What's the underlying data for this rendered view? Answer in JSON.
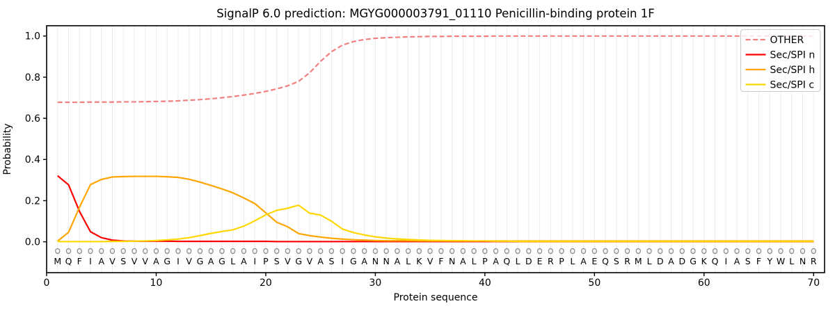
{
  "figure": {
    "title": "SignalP 6.0 prediction: MGYG000003791_01110 Penicillin-binding protein 1F",
    "xlabel": "Protein sequence",
    "ylabel": "Probability",
    "background_color": "#ffffff",
    "grid_color": "#ebebeb",
    "spine_color": "#000000",
    "marker_symbol_name": "residue-circle-marker"
  },
  "chart_data": {
    "type": "line",
    "title": "SignalP 6.0 prediction: MGYG000003791_01110 Penicillin-binding protein 1F",
    "xlabel": "Protein sequence",
    "ylabel": "Probability",
    "xlim": [
      0,
      71
    ],
    "ylim": [
      -0.15,
      1.05
    ],
    "xticks": [
      0,
      10,
      20,
      30,
      40,
      50,
      60,
      70
    ],
    "yticks": [
      "0.0",
      "0.2",
      "0.4",
      "0.6",
      "0.8",
      "1.0"
    ],
    "grid": "vertical line at every residue position",
    "legend_position": "upper right",
    "x": [
      1,
      2,
      3,
      4,
      5,
      6,
      7,
      8,
      9,
      10,
      11,
      12,
      13,
      14,
      15,
      16,
      17,
      18,
      19,
      20,
      21,
      22,
      23,
      24,
      25,
      26,
      27,
      28,
      29,
      30,
      31,
      32,
      33,
      34,
      35,
      36,
      37,
      38,
      39,
      40,
      41,
      42,
      43,
      44,
      45,
      46,
      47,
      48,
      49,
      50,
      51,
      52,
      53,
      54,
      55,
      56,
      57,
      58,
      59,
      60,
      61,
      62,
      63,
      64,
      65,
      66,
      67,
      68,
      69,
      70
    ],
    "sequence": [
      "M",
      "Q",
      "F",
      "I",
      "A",
      "V",
      "S",
      "V",
      "V",
      "A",
      "G",
      "I",
      "V",
      "G",
      "A",
      "G",
      "L",
      "A",
      "I",
      "P",
      "S",
      "V",
      "G",
      "V",
      "A",
      "S",
      "I",
      "G",
      "A",
      "N",
      "N",
      "A",
      "L",
      "K",
      "V",
      "F",
      "N",
      "A",
      "L",
      "P",
      "A",
      "Q",
      "L",
      "D",
      "E",
      "R",
      "P",
      "L",
      "A",
      "E",
      "Q",
      "S",
      "R",
      "M",
      "L",
      "D",
      "A",
      "D",
      "G",
      "K",
      "Q",
      "I",
      "A",
      "S",
      "F",
      "Y",
      "W",
      "L",
      "N",
      "R"
    ],
    "series": [
      {
        "name": "OTHER",
        "color": "#f08080",
        "style": "dashed",
        "values": [
          0.678,
          0.678,
          0.678,
          0.679,
          0.679,
          0.679,
          0.68,
          0.68,
          0.681,
          0.682,
          0.683,
          0.685,
          0.688,
          0.691,
          0.695,
          0.7,
          0.706,
          0.713,
          0.721,
          0.731,
          0.743,
          0.758,
          0.78,
          0.821,
          0.877,
          0.924,
          0.956,
          0.973,
          0.983,
          0.989,
          0.992,
          0.994,
          0.996,
          0.997,
          0.998,
          0.998,
          0.999,
          0.999,
          0.999,
          0.999,
          1.0,
          1.0,
          1.0,
          1.0,
          1.0,
          1.0,
          1.0,
          1.0,
          1.0,
          1.0,
          1.0,
          1.0,
          1.0,
          1.0,
          1.0,
          1.0,
          1.0,
          1.0,
          1.0,
          1.0,
          1.0,
          1.0,
          1.0,
          1.0,
          1.0,
          1.0,
          1.0,
          1.0,
          1.0,
          1.0
        ]
      },
      {
        "name": "Sec/SPI n",
        "color": "#ff0000",
        "style": "solid",
        "values": [
          0.321,
          0.277,
          0.148,
          0.049,
          0.02,
          0.008,
          0.004,
          0.003,
          0.003,
          0.003,
          0.003,
          0.002,
          0.002,
          0.002,
          0.002,
          0.002,
          0.002,
          0.002,
          0.002,
          0.002,
          0.001,
          0.001,
          0.001,
          0.001,
          0.001,
          0.001,
          0.001,
          0.001,
          0.001,
          0.001,
          0.001,
          0.001,
          0.001,
          0.001,
          0.001,
          0.001,
          0.001,
          0.001,
          0.001,
          0.001,
          0.001,
          0.001,
          0.001,
          0.001,
          0.001,
          0.001,
          0.001,
          0.001,
          0.001,
          0.001,
          0.001,
          0.001,
          0.001,
          0.001,
          0.001,
          0.001,
          0.001,
          0.001,
          0.001,
          0.001,
          0.001,
          0.001,
          0.001,
          0.001,
          0.001,
          0.001,
          0.001,
          0.001,
          0.001,
          0.001
        ]
      },
      {
        "name": "Sec/SPI h",
        "color": "#ffa500",
        "style": "solid",
        "values": [
          0.003,
          0.046,
          0.168,
          0.278,
          0.303,
          0.315,
          0.317,
          0.318,
          0.318,
          0.318,
          0.316,
          0.313,
          0.304,
          0.29,
          0.274,
          0.257,
          0.238,
          0.213,
          0.186,
          0.141,
          0.095,
          0.073,
          0.04,
          0.03,
          0.023,
          0.017,
          0.013,
          0.01,
          0.008,
          0.006,
          0.005,
          0.005,
          0.005,
          0.004,
          0.004,
          0.004,
          0.004,
          0.004,
          0.004,
          0.004,
          0.004,
          0.004,
          0.004,
          0.004,
          0.004,
          0.004,
          0.004,
          0.004,
          0.004,
          0.004,
          0.004,
          0.004,
          0.004,
          0.004,
          0.004,
          0.004,
          0.004,
          0.004,
          0.004,
          0.004,
          0.004,
          0.004,
          0.004,
          0.004,
          0.004,
          0.004,
          0.004,
          0.004,
          0.004,
          0.004
        ]
      },
      {
        "name": "Sec/SPI c",
        "color": "#ffd700",
        "style": "solid",
        "values": [
          0.001,
          0.001,
          0.001,
          0.001,
          0.001,
          0.002,
          0.002,
          0.003,
          0.004,
          0.006,
          0.009,
          0.013,
          0.02,
          0.03,
          0.041,
          0.05,
          0.058,
          0.076,
          0.102,
          0.131,
          0.153,
          0.163,
          0.178,
          0.139,
          0.13,
          0.1,
          0.062,
          0.045,
          0.033,
          0.024,
          0.018,
          0.014,
          0.011,
          0.009,
          0.007,
          0.006,
          0.005,
          0.005,
          0.004,
          0.004,
          0.003,
          0.003,
          0.002,
          0.002,
          0.002,
          0.002,
          0.002,
          0.002,
          0.002,
          0.002,
          0.002,
          0.002,
          0.002,
          0.002,
          0.002,
          0.002,
          0.002,
          0.002,
          0.002,
          0.002,
          0.002,
          0.002,
          0.002,
          0.002,
          0.002,
          0.002,
          0.002,
          0.002,
          0.002,
          0.002
        ]
      }
    ],
    "residue_markers": {
      "symbol": "O",
      "color": "#8a8a8a",
      "y": -0.045
    },
    "sequence_letters_y": -0.095
  }
}
